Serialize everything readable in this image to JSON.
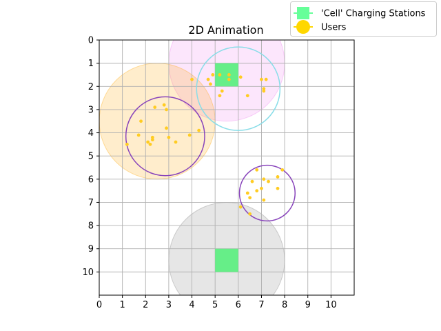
{
  "chart_data": {
    "type": "scatter",
    "title": "2D Animation",
    "xlabel": "",
    "ylabel": "",
    "xlim": [
      0,
      11
    ],
    "ylim": [
      11,
      0
    ],
    "y_inverted": true,
    "grid": true,
    "x_ticks": [
      "0",
      "1",
      "2",
      "3",
      "4",
      "5",
      "6",
      "7",
      "8",
      "9",
      "10"
    ],
    "y_ticks": [
      "0",
      "1",
      "2",
      "3",
      "4",
      "5",
      "6",
      "7",
      "8",
      "9",
      "10"
    ],
    "legend": {
      "placement": "upper-right-outside",
      "entries": [
        {
          "label": "'Cell' Charging Stations",
          "color": "#66ff99",
          "marker": "square"
        },
        {
          "label": "Users",
          "color": "#ffd700",
          "marker": "circle"
        }
      ]
    },
    "coverage_areas": [
      {
        "cx": 5.5,
        "cy": 1.0,
        "r": 2.5,
        "color": "#ee82ee",
        "opacity": 0.2
      },
      {
        "cx": 2.5,
        "cy": 3.5,
        "r": 2.5,
        "color": "#ffa500",
        "opacity": 0.2
      },
      {
        "cx": 5.5,
        "cy": 9.5,
        "r": 2.5,
        "color": "#808080",
        "opacity": 0.2
      }
    ],
    "stations": [
      {
        "x": 5.5,
        "y": 1.5,
        "size": 1.0,
        "color": "#66ee88"
      },
      {
        "x": 5.5,
        "y": 9.5,
        "size": 1.0,
        "color": "#66ee88"
      }
    ],
    "cluster_circles": [
      {
        "cx": 6.0,
        "cy": 2.1,
        "r": 1.8,
        "color": "#88dde8"
      },
      {
        "cx": 2.85,
        "cy": 4.15,
        "r": 1.7,
        "color": "#8844bb"
      },
      {
        "cx": 7.25,
        "cy": 6.6,
        "r": 1.2,
        "color": "#8844bb"
      }
    ],
    "users": [
      {
        "x": 4.0,
        "y": 1.7
      },
      {
        "x": 4.9,
        "y": 1.5
      },
      {
        "x": 5.2,
        "y": 1.5
      },
      {
        "x": 5.6,
        "y": 1.5
      },
      {
        "x": 4.7,
        "y": 1.7
      },
      {
        "x": 4.8,
        "y": 1.9
      },
      {
        "x": 5.6,
        "y": 1.7
      },
      {
        "x": 6.1,
        "y": 1.6
      },
      {
        "x": 7.0,
        "y": 1.7
      },
      {
        "x": 7.2,
        "y": 1.7
      },
      {
        "x": 7.1,
        "y": 2.1
      },
      {
        "x": 7.1,
        "y": 2.2
      },
      {
        "x": 5.3,
        "y": 2.2
      },
      {
        "x": 5.2,
        "y": 2.4
      },
      {
        "x": 6.4,
        "y": 2.4
      },
      {
        "x": 2.4,
        "y": 2.9
      },
      {
        "x": 2.8,
        "y": 2.8
      },
      {
        "x": 2.9,
        "y": 3.0
      },
      {
        "x": 1.8,
        "y": 3.5
      },
      {
        "x": 2.9,
        "y": 3.8
      },
      {
        "x": 4.3,
        "y": 3.9
      },
      {
        "x": 1.7,
        "y": 4.1
      },
      {
        "x": 3.9,
        "y": 4.1
      },
      {
        "x": 3.0,
        "y": 4.2
      },
      {
        "x": 2.3,
        "y": 4.2
      },
      {
        "x": 2.3,
        "y": 4.3
      },
      {
        "x": 2.1,
        "y": 4.4
      },
      {
        "x": 3.3,
        "y": 4.4
      },
      {
        "x": 2.2,
        "y": 4.5
      },
      {
        "x": 1.2,
        "y": 4.5
      },
      {
        "x": 6.8,
        "y": 5.6
      },
      {
        "x": 7.9,
        "y": 5.6
      },
      {
        "x": 7.7,
        "y": 5.9
      },
      {
        "x": 7.1,
        "y": 6.0
      },
      {
        "x": 6.6,
        "y": 6.1
      },
      {
        "x": 7.3,
        "y": 6.1
      },
      {
        "x": 7.0,
        "y": 6.4
      },
      {
        "x": 7.7,
        "y": 6.4
      },
      {
        "x": 6.8,
        "y": 6.5
      },
      {
        "x": 6.4,
        "y": 6.6
      },
      {
        "x": 6.5,
        "y": 6.8
      },
      {
        "x": 7.1,
        "y": 6.9
      },
      {
        "x": 6.1,
        "y": 7.2
      },
      {
        "x": 6.5,
        "y": 7.5
      }
    ],
    "user_color": "#ffcc22"
  }
}
